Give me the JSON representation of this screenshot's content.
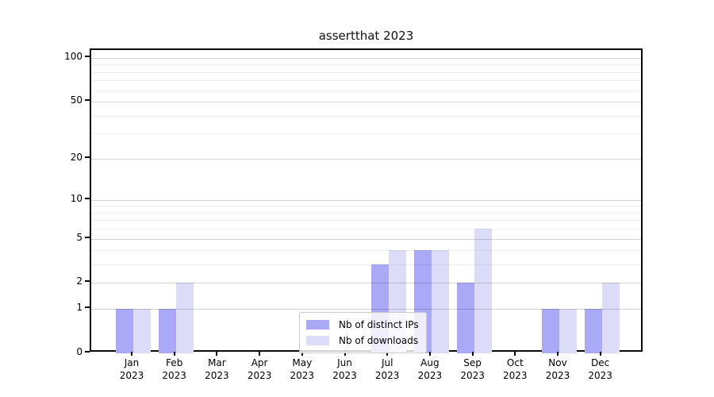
{
  "chart_data": {
    "type": "bar",
    "title": "assertthat 2023",
    "categories": [
      "Jan 2023",
      "Feb 2023",
      "Mar 2023",
      "Apr 2023",
      "May 2023",
      "Jun 2023",
      "Jul 2023",
      "Aug 2023",
      "Sep 2023",
      "Oct 2023",
      "Nov 2023",
      "Dec 2023"
    ],
    "series": [
      {
        "name": "Nb of distinct IPs",
        "color": "#a9a9f7",
        "values": [
          1,
          1,
          0,
          0,
          0,
          0,
          3,
          4,
          2,
          0,
          1,
          1
        ]
      },
      {
        "name": "Nb of downloads",
        "color": "#dcdcf8",
        "values": [
          1,
          2,
          0,
          0,
          0,
          0,
          4,
          4,
          6,
          0,
          1,
          2
        ]
      }
    ],
    "y_scale": "log1p",
    "y_ticks": [
      0,
      1,
      2,
      5,
      10,
      20,
      50,
      100
    ],
    "y_minor_gridlines": [
      3,
      4,
      6,
      7,
      8,
      9,
      30,
      40,
      60,
      70,
      80,
      90
    ],
    "ylim": [
      0,
      113
    ],
    "xlabel": "",
    "ylabel": "",
    "grid": "on",
    "legend_position": "lower center"
  },
  "colors": {
    "bar_distinct_ips": "#a9a9f7",
    "bar_downloads": "#dcdcf8",
    "axis": "#0a0a0a",
    "grid_major": "#d4d4d4",
    "grid_minor": "#efefef",
    "legend_border": "#cccccc"
  }
}
